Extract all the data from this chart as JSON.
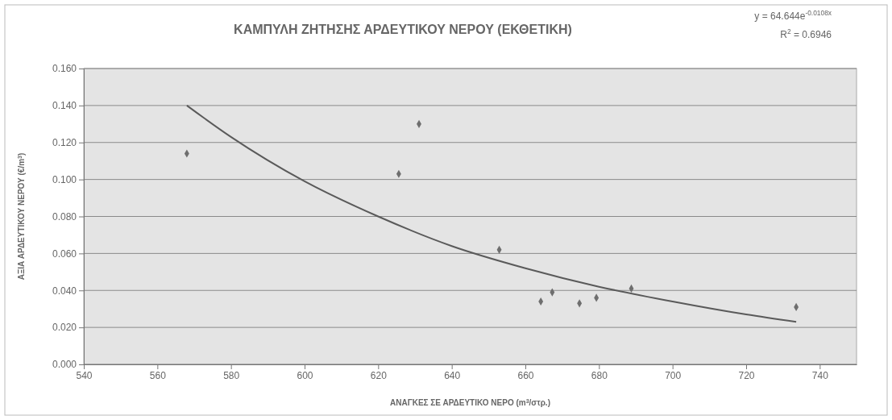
{
  "chart_data": {
    "type": "scatter",
    "title": "ΚΑΜΠΥΛΗ ΖΗΤΗΣΗΣ ΑΡΔΕΥΤΙΚΟΥ ΝΕΡΟΥ (ΕΚΘΕΤΙΚΗ)",
    "xlabel": "ΑΝΑΓΚΕΣ ΣΕ ΑΡΔΕΥΤΙΚΟ ΝΕΡΟ (m$^{3}$/στρ.)",
    "ylabel": "ΑΞΙΑ ΑΡΔΕΥΤΙΚΟΥ ΝΕΡΟΥ (€/m$^{3}$)",
    "annotations": [
      "y = 64.644e$^{-0.0108x}$",
      "R$^{2}$ = 0.6946"
    ],
    "series": [
      {
        "marker": "diamond",
        "color": "#6e6e6e",
        "x": [
          568,
          625.6,
          631.1,
          652.9,
          664.2,
          667.3,
          674.7,
          679.3,
          688.8,
          733.6
        ],
        "values": [
          0.114,
          0.103,
          0.13,
          0.062,
          0.034,
          0.039,
          0.033,
          0.036,
          0.041,
          0.031
        ]
      },
      {
        "type": "line",
        "marker": "none",
        "color": "#5a5a5a",
        "x": [
          568,
          580,
          600,
          620,
          640,
          660,
          680,
          700,
          720,
          733.6
        ],
        "values": [
          0.14,
          0.123,
          0.099,
          0.08,
          0.064,
          0.052,
          0.042,
          0.034,
          0.027,
          0.023
        ]
      }
    ],
    "xlim": [
      540,
      750
    ],
    "xticks": [
      540,
      560,
      580,
      600,
      620,
      640,
      660,
      680,
      700,
      720,
      740
    ],
    "ylim": [
      0,
      0.16
    ],
    "yticks": [
      {
        "value": 0,
        "label": "0.000"
      },
      {
        "value": 0.02,
        "label": "0.020"
      },
      {
        "value": 0.04,
        "label": "0.040"
      },
      {
        "value": 0.06,
        "label": "0.060"
      },
      {
        "value": 0.08,
        "label": "0.080"
      },
      {
        "value": 0.1,
        "label": "0.100"
      },
      {
        "value": 0.12,
        "label": "0.120"
      },
      {
        "value": 0.14,
        "label": "0.140"
      },
      {
        "value": 0.16,
        "label": "0.160"
      }
    ],
    "grid": "y",
    "line_style": "solid"
  }
}
